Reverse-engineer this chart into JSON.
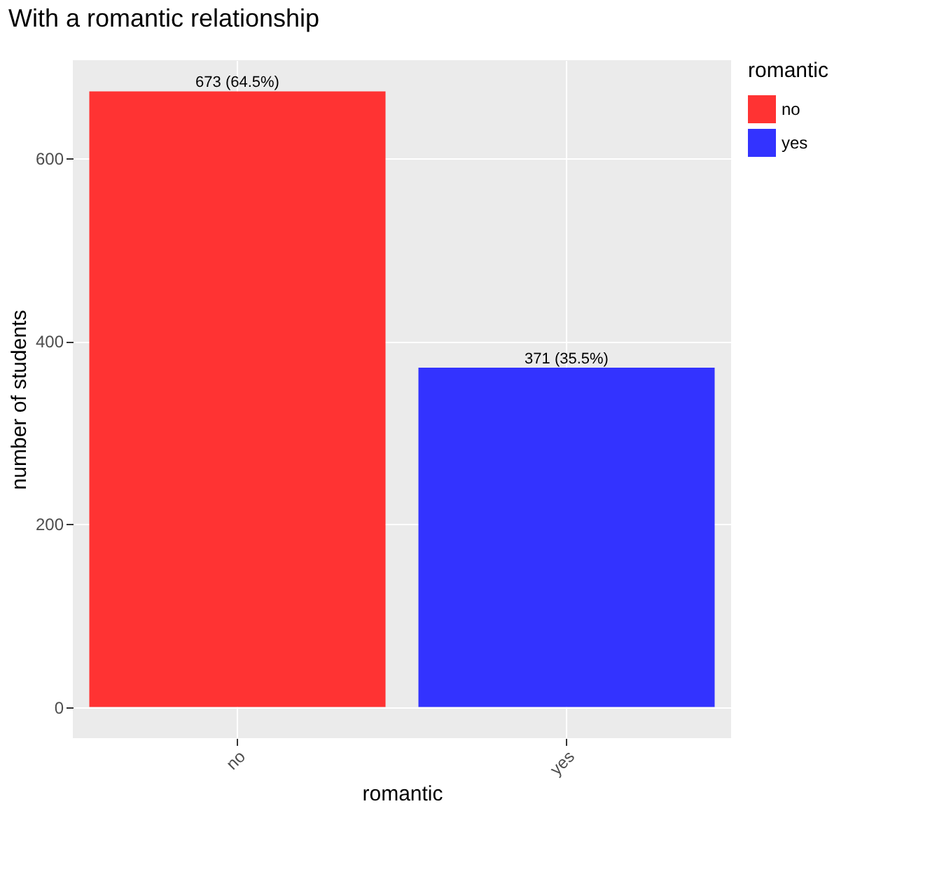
{
  "chart_data": {
    "type": "bar",
    "title": "With a romantic relationship",
    "xlabel": "romantic",
    "ylabel": "number of students",
    "legend_title": "romantic",
    "categories": [
      "no",
      "yes"
    ],
    "series": [
      {
        "name": "no",
        "color": "#ff3333",
        "values": [
          673,
          null
        ],
        "value_labels": [
          "673 (64.5%)",
          null
        ]
      },
      {
        "name": "yes",
        "color": "#3333ff",
        "values": [
          null,
          371
        ],
        "value_labels": [
          null,
          "371 (35.5%)"
        ]
      }
    ],
    "ylim": [
      -34,
      707
    ],
    "yticks": [
      0,
      200,
      400,
      600
    ],
    "grid": true,
    "legend": "right"
  }
}
